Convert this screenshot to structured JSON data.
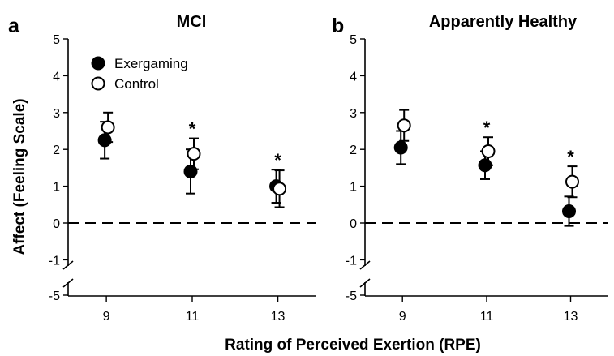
{
  "chart_data": {
    "shared": {
      "xlabel": "Rating of Perceived Exertion (RPE)",
      "ylabel": "Affect (Feeling Scale)",
      "x_categories": [
        "9",
        "11",
        "13"
      ],
      "y_ticks": [
        "-5",
        "-1",
        "0",
        "1",
        "2",
        "3",
        "4",
        "5"
      ],
      "y_axis_break": "between -5 and -1",
      "reference_line": {
        "y": 0,
        "style": "dashed"
      },
      "legend": {
        "entries": [
          {
            "name": "Exergaming",
            "marker": "filled-circle",
            "color": "#000000"
          },
          {
            "name": "Control",
            "marker": "open-circle",
            "color": "#ffffff"
          }
        ],
        "placement": "top-left of panel a"
      }
    },
    "panels": [
      {
        "letter": "a",
        "title": "MCI",
        "type": "scatter",
        "ylim": [
          -1,
          5
        ],
        "series": [
          {
            "name": "Exergaming",
            "values": [
              2.25,
              1.4,
              1.0
            ],
            "error": [
              0.5,
              0.6,
              0.45
            ]
          },
          {
            "name": "Control",
            "values": [
              2.6,
              1.88,
              0.93
            ],
            "error": [
              0.4,
              0.42,
              0.5
            ]
          }
        ],
        "annotations": [
          {
            "x": "11",
            "text": "*"
          },
          {
            "x": "13",
            "text": "*"
          }
        ]
      },
      {
        "letter": "b",
        "title": "Apparently Healthy",
        "type": "scatter",
        "ylim": [
          -1,
          5
        ],
        "series": [
          {
            "name": "Exergaming",
            "values": [
              2.05,
              1.57,
              0.32
            ],
            "error": [
              0.45,
              0.38,
              0.4
            ]
          },
          {
            "name": "Control",
            "values": [
              2.65,
              1.95,
              1.12
            ],
            "error": [
              0.42,
              0.38,
              0.42
            ]
          }
        ],
        "annotations": [
          {
            "x": "11",
            "text": "*"
          },
          {
            "x": "13",
            "text": "*"
          }
        ]
      }
    ]
  }
}
